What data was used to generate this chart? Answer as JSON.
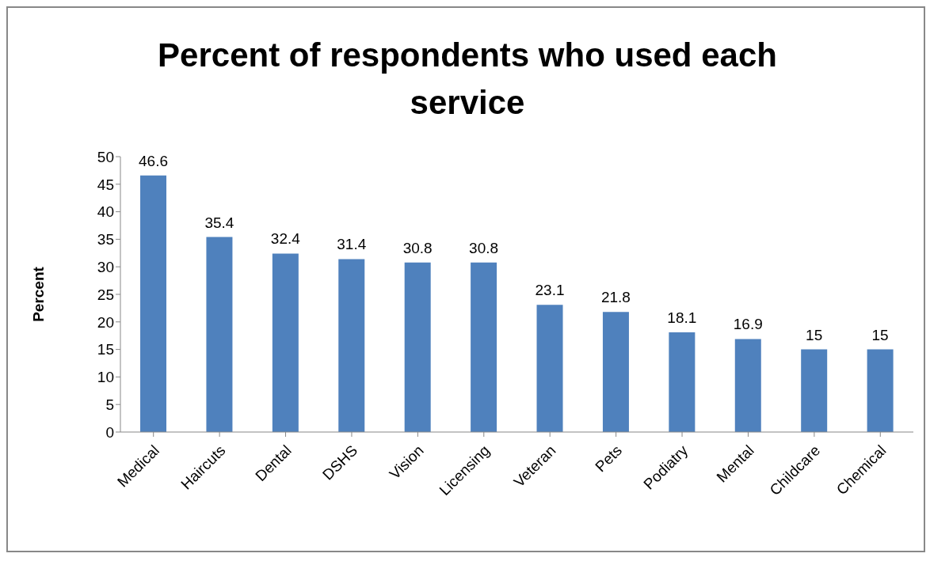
{
  "chart_data": {
    "type": "bar",
    "title": "Percent of respondents who used each service",
    "ylabel": "Percent",
    "categories": [
      "Medical",
      "Haircuts",
      "Dental",
      "DSHS",
      "Vision",
      "Licensing",
      "Veteran",
      "Pets",
      "Podiatry",
      "Mental",
      "Childcare",
      "Chemical"
    ],
    "values": [
      46.6,
      35.4,
      32.4,
      31.4,
      30.8,
      30.8,
      23.1,
      21.8,
      18.1,
      16.9,
      15,
      15
    ],
    "color": "#4f81bd",
    "ylim": [
      0,
      50
    ],
    "yticks": [
      0,
      5,
      10,
      15,
      20,
      25,
      30,
      35,
      40,
      45,
      50
    ],
    "grid": false,
    "data_labels": true,
    "legend": false
  }
}
